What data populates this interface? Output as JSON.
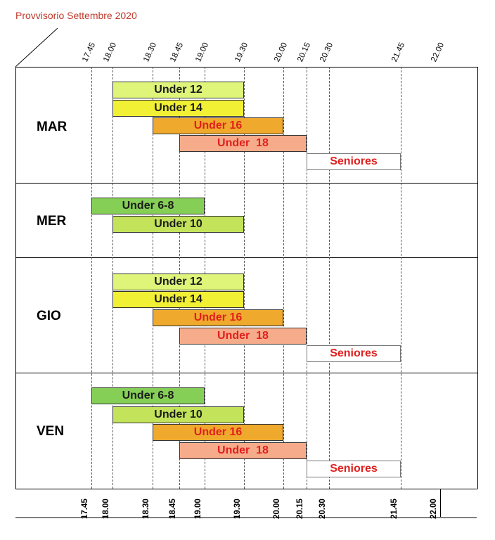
{
  "title": "Provvisorio Settembre 2020",
  "times": [
    "17.45",
    "18.00",
    "18.30",
    "18.45",
    "19.00",
    "19.30",
    "20.00",
    "20.15",
    "20.30",
    "21.45",
    "22.00"
  ],
  "colors": {
    "under12": "#dff57a",
    "under14": "#f1f034",
    "under16": "#efa92c",
    "under18": "#f6ab8a",
    "seniores": "#ffffff",
    "under68": "#85cf56",
    "under10": "#c3e35a",
    "red_text": "#e0201e",
    "dark_text": "#1b1b1b"
  },
  "days": [
    {
      "label": "MAR",
      "slots": [
        {
          "label": "Under 12",
          "start": "18.00",
          "end": "19.30",
          "color": "under12",
          "text": "dark"
        },
        {
          "label": "Under 14",
          "start": "18.00",
          "end": "19.30",
          "color": "under14",
          "text": "dark"
        },
        {
          "label": "Under 16",
          "start": "18.30",
          "end": "20.00",
          "color": "under16",
          "text": "red"
        },
        {
          "label": "Under  18",
          "start": "18.45",
          "end": "20.15",
          "color": "under18",
          "text": "red"
        },
        {
          "label": "Seniores",
          "start": "20.15",
          "end": "21.45",
          "color": "seniores",
          "text": "red"
        }
      ]
    },
    {
      "label": "MER",
      "slots": [
        {
          "label": "Under 6-8",
          "start": "17.45",
          "end": "19.00",
          "color": "under68",
          "text": "dark"
        },
        {
          "label": "Under 10",
          "start": "18.00",
          "end": "19.30",
          "color": "under10",
          "text": "dark"
        }
      ]
    },
    {
      "label": "GIO",
      "slots": [
        {
          "label": "Under 12",
          "start": "18.00",
          "end": "19.30",
          "color": "under12",
          "text": "dark"
        },
        {
          "label": "Under 14",
          "start": "18.00",
          "end": "19.30",
          "color": "under14",
          "text": "dark"
        },
        {
          "label": "Under 16",
          "start": "18.30",
          "end": "20.00",
          "color": "under16",
          "text": "red"
        },
        {
          "label": "Under  18",
          "start": "18.45",
          "end": "20.15",
          "color": "under18",
          "text": "red"
        },
        {
          "label": "Seniores",
          "start": "20.15",
          "end": "21.45",
          "color": "seniores",
          "text": "red"
        }
      ]
    },
    {
      "label": "VEN",
      "slots": [
        {
          "label": "Under 6-8",
          "start": "17.45",
          "end": "19.00",
          "color": "under68",
          "text": "dark"
        },
        {
          "label": "Under 10",
          "start": "18.00",
          "end": "19.30",
          "color": "under10",
          "text": "dark"
        },
        {
          "label": "Under 16",
          "start": "18.30",
          "end": "20.00",
          "color": "under16",
          "text": "red"
        },
        {
          "label": "Under  18",
          "start": "18.45",
          "end": "20.15",
          "color": "under18",
          "text": "red"
        },
        {
          "label": "Seniores",
          "start": "20.15",
          "end": "21.45",
          "color": "seniores",
          "text": "red"
        }
      ]
    }
  ]
}
